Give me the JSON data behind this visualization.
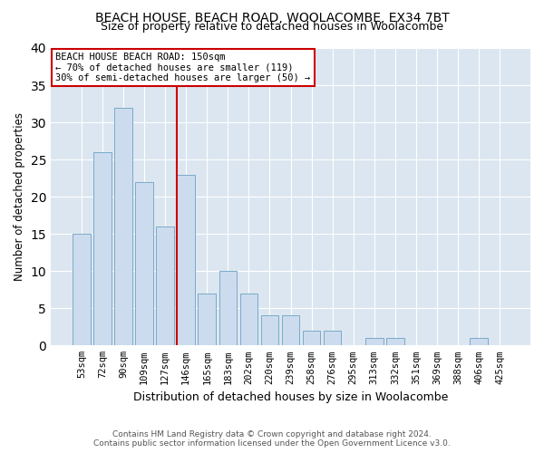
{
  "title": "BEACH HOUSE, BEACH ROAD, WOOLACOMBE, EX34 7BT",
  "subtitle": "Size of property relative to detached houses in Woolacombe",
  "xlabel": "Distribution of detached houses by size in Woolacombe",
  "ylabel": "Number of detached properties",
  "categories": [
    "53sqm",
    "72sqm",
    "90sqm",
    "109sqm",
    "127sqm",
    "146sqm",
    "165sqm",
    "183sqm",
    "202sqm",
    "220sqm",
    "239sqm",
    "258sqm",
    "276sqm",
    "295sqm",
    "313sqm",
    "332sqm",
    "351sqm",
    "369sqm",
    "388sqm",
    "406sqm",
    "425sqm"
  ],
  "values": [
    15,
    26,
    32,
    22,
    16,
    23,
    7,
    10,
    7,
    4,
    4,
    2,
    2,
    0,
    1,
    1,
    0,
    0,
    0,
    1,
    0
  ],
  "bar_color": "#ccdcee",
  "bar_edge_color": "#7aaaca",
  "vline_color": "#cc0000",
  "annotation_text": "BEACH HOUSE BEACH ROAD: 150sqm\n← 70% of detached houses are smaller (119)\n30% of semi-detached houses are larger (50) →",
  "annotation_box_color": "#ffffff",
  "annotation_box_edge_color": "#cc0000",
  "ylim": [
    0,
    40
  ],
  "yticks": [
    0,
    5,
    10,
    15,
    20,
    25,
    30,
    35,
    40
  ],
  "background_color": "#dce6f0",
  "footer_line1": "Contains HM Land Registry data © Crown copyright and database right 2024.",
  "footer_line2": "Contains public sector information licensed under the Open Government Licence v3.0."
}
